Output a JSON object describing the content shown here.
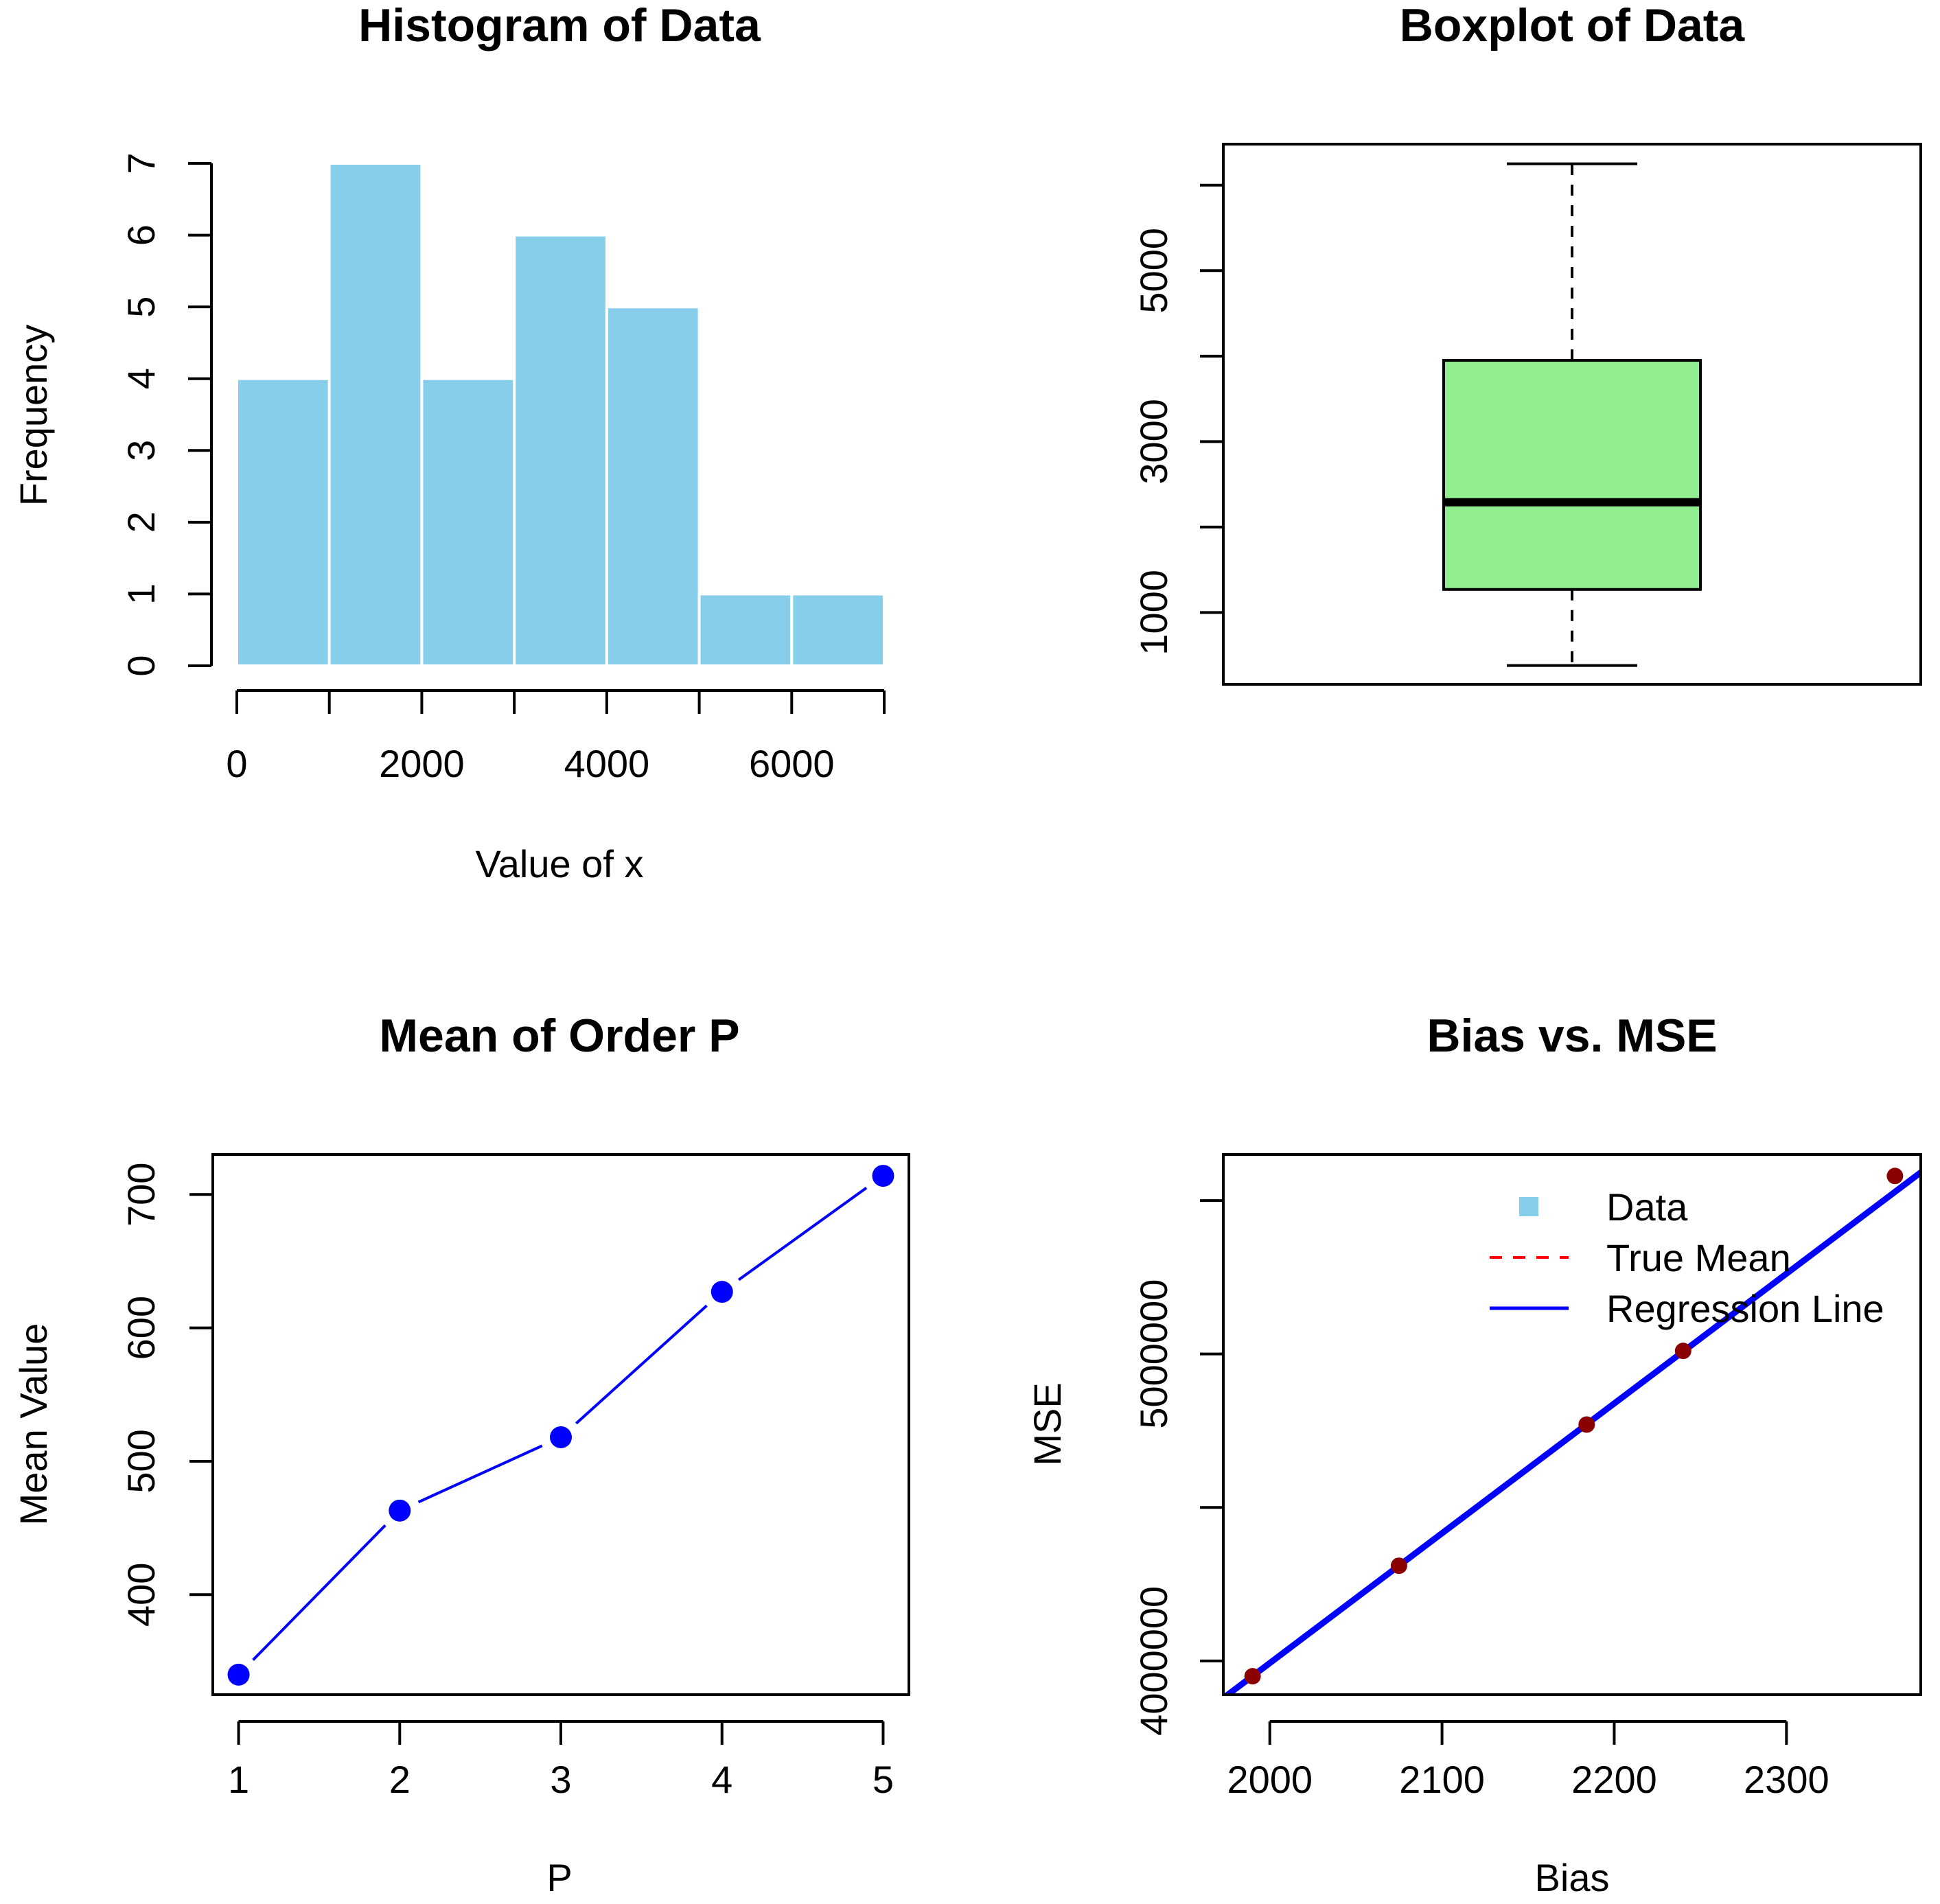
{
  "chart_data": [
    {
      "id": "histogram",
      "type": "bar",
      "subtype": "histogram",
      "title": "Histogram of Data",
      "xlabel": "Value of x",
      "ylabel": "Frequency",
      "bin_edges": [
        0,
        1000,
        2000,
        3000,
        4000,
        5000,
        6000,
        7000
      ],
      "values": [
        4,
        7,
        4,
        6,
        5,
        1,
        1
      ],
      "xlim": [
        0,
        7000
      ],
      "ylim": [
        0,
        7
      ],
      "x_ticks": [
        0,
        1000,
        2000,
        3000,
        4000,
        5000,
        6000,
        7000
      ],
      "x_tick_labels": [
        "0",
        "",
        "2000",
        "",
        "4000",
        "",
        "6000",
        ""
      ],
      "y_ticks": [
        0,
        1,
        2,
        3,
        4,
        5,
        6,
        7
      ],
      "y_tick_labels": [
        "0",
        "1",
        "2",
        "3",
        "4",
        "5",
        "6",
        "7"
      ],
      "bar_color": "#87CEEB",
      "border_color": "#FFFFFF",
      "grid": false
    },
    {
      "id": "boxplot",
      "type": "boxplot",
      "title": "Boxplot of Data",
      "min": 380,
      "q1": 1270,
      "median": 2290,
      "q3": 3950,
      "max": 6250,
      "ylim": [
        160,
        6480
      ],
      "y_ticks": [
        1000,
        2000,
        3000,
        4000,
        5000,
        6000
      ],
      "y_tick_labels": [
        "1000",
        "",
        "3000",
        "",
        "5000",
        ""
      ],
      "box_color": "#90EE90",
      "grid": false
    },
    {
      "id": "mean-of-order",
      "type": "line",
      "title": "Mean of Order P",
      "xlabel": "P",
      "ylabel": "Mean Value",
      "x": [
        1,
        2,
        3,
        4,
        5
      ],
      "values": [
        340,
        463,
        518,
        627,
        714
      ],
      "xlim": [
        0.84,
        5.16
      ],
      "ylim": [
        325,
        730
      ],
      "x_ticks": [
        1,
        2,
        3,
        4,
        5
      ],
      "x_tick_labels": [
        "1",
        "2",
        "3",
        "4",
        "5"
      ],
      "y_ticks": [
        400,
        500,
        600,
        700
      ],
      "y_tick_labels": [
        "400",
        "500",
        "600",
        "700"
      ],
      "color": "#0000FF",
      "grid": false
    },
    {
      "id": "bias-mse",
      "type": "scatter",
      "title": "Bias vs. MSE",
      "xlabel": "Bias",
      "ylabel": "MSE",
      "points": [
        {
          "x": 1990,
          "y": 3950000
        },
        {
          "x": 2075,
          "y": 4310000
        },
        {
          "x": 2184,
          "y": 4770000
        },
        {
          "x": 2240,
          "y": 5010000
        },
        {
          "x": 2363,
          "y": 5580000
        }
      ],
      "regression_line": {
        "intercept": -4465000,
        "slope": 4229
      },
      "xlim": [
        1973,
        2378
      ],
      "ylim": [
        3890000,
        5650000
      ],
      "x_ticks": [
        2000,
        2100,
        2200,
        2300
      ],
      "x_tick_labels": [
        "2000",
        "2100",
        "2200",
        "2300"
      ],
      "y_ticks": [
        4000000,
        4500000,
        5000000,
        5500000
      ],
      "y_tick_labels": [
        "4000000",
        "",
        "5000000",
        ""
      ],
      "point_color": "#8B0000",
      "line_color": "#0000FF",
      "legend_position": "top-right",
      "legend": [
        {
          "label": "Data",
          "kind": "square",
          "color": "#87CEEB"
        },
        {
          "label": "True Mean",
          "kind": "dashed-line",
          "color": "#FF0000"
        },
        {
          "label": "Regression Line",
          "kind": "line",
          "color": "#0000FF"
        }
      ],
      "grid": false
    }
  ]
}
